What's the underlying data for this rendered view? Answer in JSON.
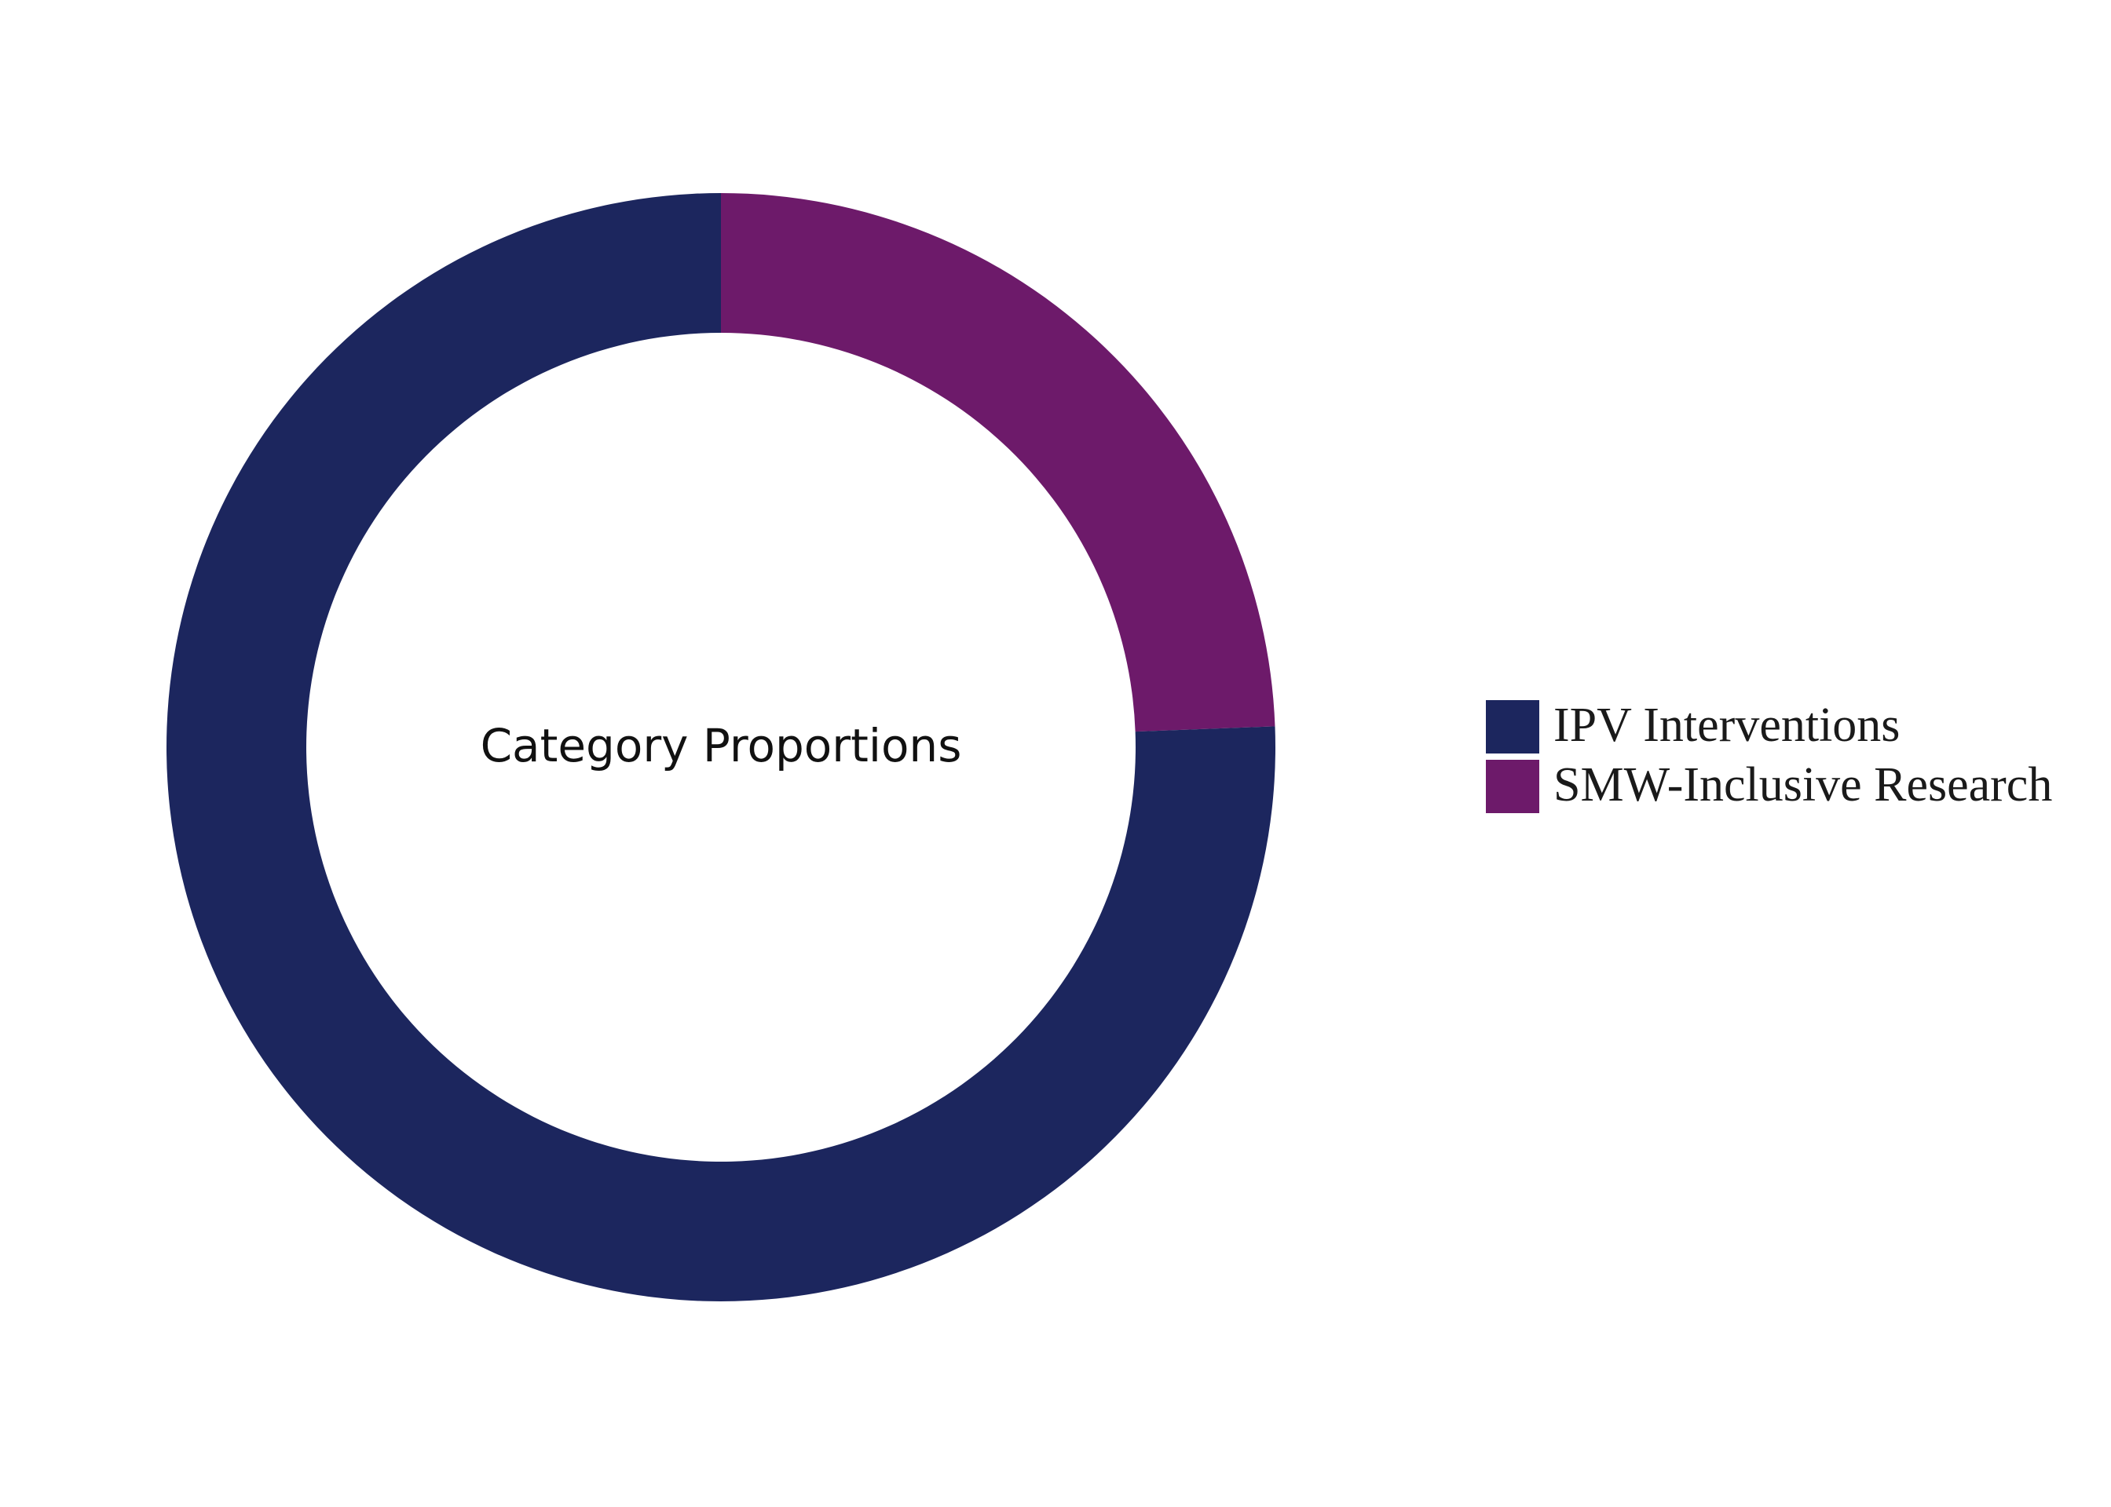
{
  "chart_data": {
    "type": "pie",
    "variant": "donut",
    "center_label": "Category Proportions",
    "slices": [
      {
        "label": "IPV Interventions",
        "value": 75.6,
        "color": "#1c265e"
      },
      {
        "label": "SMW-Inclusive Research",
        "value": 24.4,
        "color": "#6d1a6a"
      }
    ],
    "legend_position": "right",
    "start_angle_deg": 0,
    "direction": "clockwise"
  }
}
